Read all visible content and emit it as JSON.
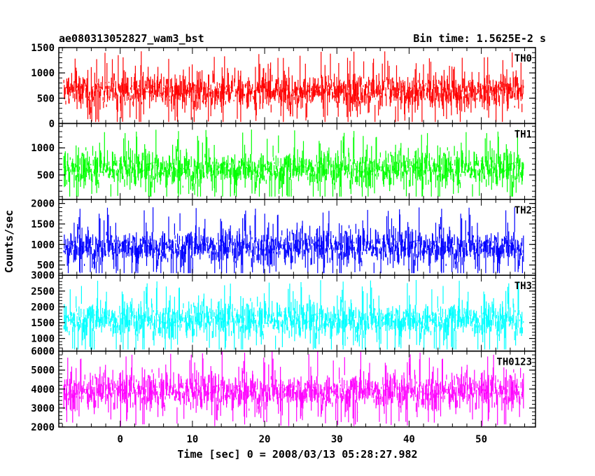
{
  "header": {
    "left_title": "ae080313052827_wam3_bst",
    "right_title": "Bin time: 1.5625E-2 s"
  },
  "chart_data": {
    "type": "line",
    "title": "ae080313052827_wam3_bst",
    "subtitle": "Bin time: 1.5625E-2 s",
    "xlabel": "Time [sec] 0 = 2008/03/13 05:28:27.982",
    "ylabel": "Counts/sec",
    "xlim": [
      -8.5,
      57.5
    ],
    "x_range_data": [
      -7.8,
      55.9
    ],
    "x_ticks": [
      0,
      10,
      20,
      30,
      40,
      50
    ],
    "x_tick_labels": [
      "0",
      "10",
      "20",
      "30",
      "40",
      "50"
    ],
    "grid": false,
    "legend": "none",
    "panels": [
      {
        "name": "TH0",
        "color": "#ff0000",
        "ylim": [
          0,
          1500
        ],
        "y_ticks": [
          0,
          500,
          1000,
          1500
        ],
        "y_tick_labels": [
          "0",
          "500",
          "1000",
          "1500"
        ],
        "mean": 640,
        "min_approx": 30,
        "max_approx": 1500
      },
      {
        "name": "TH1",
        "color": "#00ff00",
        "ylim": [
          50,
          1450
        ],
        "y_ticks": [
          500,
          1000
        ],
        "y_tick_labels": [
          "500",
          "1000"
        ],
        "mean": 620,
        "min_approx": 100,
        "max_approx": 1450
      },
      {
        "name": "TH2",
        "color": "#0000ff",
        "ylim": [
          250,
          2100
        ],
        "y_ticks": [
          500,
          1000,
          1500,
          2000
        ],
        "y_tick_labels": [
          "500",
          "1000",
          "1500",
          "2000"
        ],
        "mean": 950,
        "min_approx": 300,
        "max_approx": 2100
      },
      {
        "name": "TH3",
        "color": "#00ffff",
        "ylim": [
          600,
          3000
        ],
        "y_ticks": [
          1000,
          1500,
          2000,
          2500,
          3000
        ],
        "y_tick_labels": [
          "1000",
          "1500",
          "2000",
          "2500",
          "3000"
        ],
        "mean": 1600,
        "min_approx": 650,
        "max_approx": 3000
      },
      {
        "name": "TH0123",
        "color": "#ff00ff",
        "ylim": [
          2000,
          6000
        ],
        "y_ticks": [
          2000,
          3000,
          4000,
          5000,
          6000
        ],
        "y_tick_labels": [
          "2000",
          "3000",
          "4000",
          "5000",
          "6000"
        ],
        "mean": 3900,
        "min_approx": 2050,
        "max_approx": 6000
      }
    ]
  }
}
